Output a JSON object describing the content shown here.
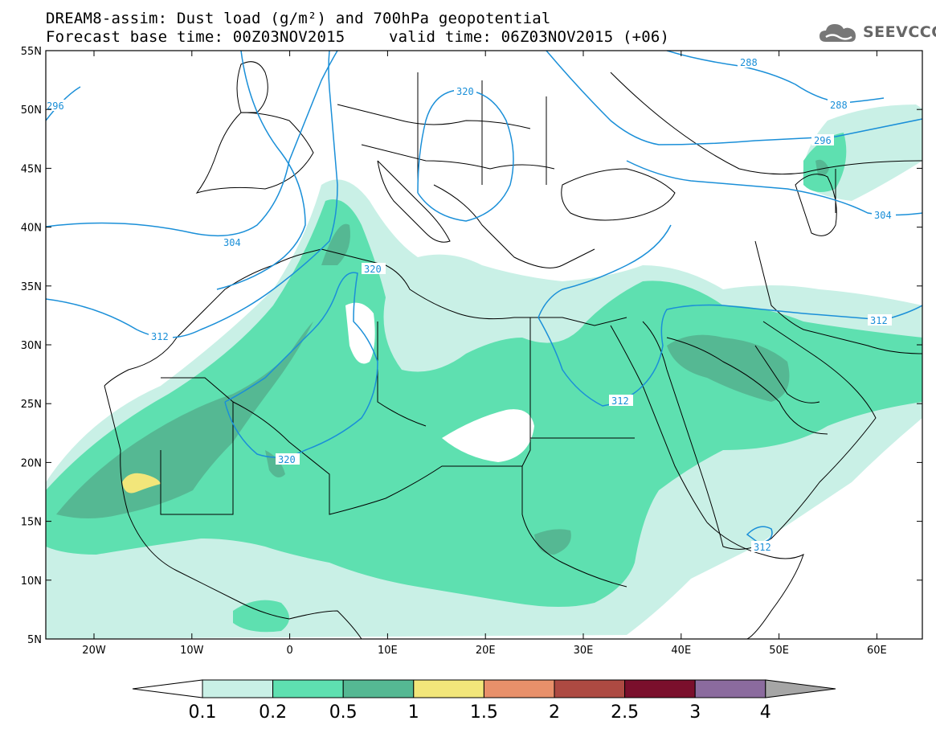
{
  "header": {
    "title_line1": "DREAM8-assim: Dust load (g/m²) and 700hPa geopotential",
    "base_time": "Forecast base time: 00Z03NOV2015",
    "valid_time": "valid time: 06Z03NOV2015 (+06)"
  },
  "logo": {
    "text": "SEEVCCC",
    "icon": "cloud-icon"
  },
  "axes": {
    "lat_labels": [
      "55N",
      "50N",
      "45N",
      "40N",
      "35N",
      "30N",
      "25N",
      "20N",
      "15N",
      "10N",
      "5N"
    ],
    "lon_labels": [
      "20W",
      "10W",
      "0",
      "10E",
      "20E",
      "30E",
      "40E",
      "50E",
      "60E"
    ]
  },
  "contour_labels": [
    "296",
    "288",
    "320",
    "288",
    "296",
    "304",
    "304",
    "320",
    "312",
    "312",
    "312",
    "320",
    "312"
  ],
  "colorbar": {
    "labels": [
      "0.1",
      "0.2",
      "0.5",
      "1",
      "1.5",
      "2",
      "2.5",
      "3",
      "4"
    ],
    "colors": [
      "#c9f0e6",
      "#5ee0b0",
      "#55b893",
      "#f2e67a",
      "#e8906a",
      "#ad4a42",
      "#7a0f2c",
      "#8b6b9e"
    ],
    "under_color": "#ffffff",
    "over_color": "#a6a6a6"
  },
  "colors": {
    "contour": "#1a8fd8",
    "dust_low": "#c9f0e6",
    "dust_mid": "#5ee0b0",
    "dust_high": "#55b893",
    "dust_peak": "#f2e67a"
  }
}
